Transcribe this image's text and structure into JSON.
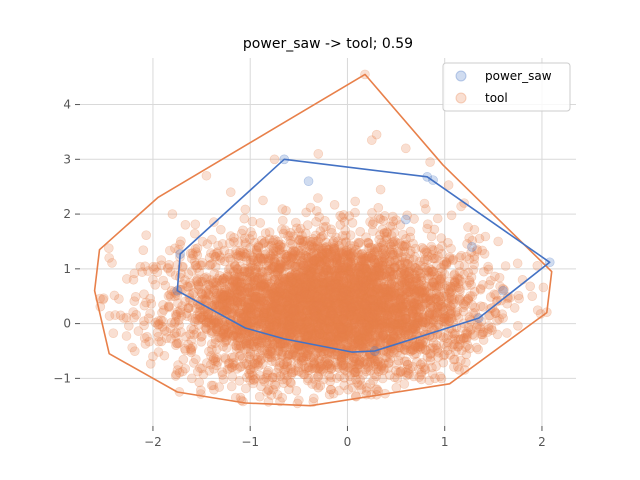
{
  "chart_data": {
    "type": "scatter",
    "title": "power_saw -> tool; 0.59",
    "xlabel": "",
    "ylabel": "",
    "xlim": [
      -2.75,
      2.35
    ],
    "ylim": [
      -1.87,
      4.85
    ],
    "xticks": [
      -2,
      -1,
      0,
      1,
      2
    ],
    "yticks": [
      -1,
      0,
      1,
      2,
      3,
      4
    ],
    "x_tick_labels": [
      "−2",
      "−1",
      "0",
      "1",
      "2"
    ],
    "y_tick_labels": [
      "−1",
      "0",
      "1",
      "2",
      "3",
      "4"
    ],
    "grid": true,
    "legend_position": "top-right",
    "series": [
      {
        "name": "tool",
        "color": "#e8804a",
        "marker": "circle",
        "alpha": 0.25,
        "cloud_center": [
          -0.2,
          0.3
        ],
        "cloud_spread": [
          0.75,
          0.65
        ],
        "approx_points": 5000,
        "hull": [
          [
            -2.55,
            1.35
          ],
          [
            -1.95,
            2.3
          ],
          [
            0.18,
            4.55
          ],
          [
            0.98,
            2.9
          ],
          [
            2.1,
            0.95
          ],
          [
            2.05,
            0.2
          ],
          [
            1.05,
            -1.1
          ],
          [
            -0.38,
            -1.5
          ],
          [
            -1.05,
            -1.45
          ],
          [
            -1.75,
            -1.25
          ],
          [
            -2.45,
            -0.55
          ],
          [
            -2.6,
            0.6
          ]
        ],
        "sample_points": [
          [
            -2.45,
            1.2
          ],
          [
            -2.2,
            0.8
          ],
          [
            -2.3,
            0.1
          ],
          [
            -2.0,
            -0.6
          ],
          [
            -1.6,
            -1.0
          ],
          [
            -1.8,
            2.0
          ],
          [
            -1.2,
            2.4
          ],
          [
            -0.75,
            3.0
          ],
          [
            -0.3,
            3.1
          ],
          [
            0.25,
            3.35
          ],
          [
            0.3,
            3.45
          ],
          [
            0.6,
            3.2
          ],
          [
            0.85,
            2.95
          ],
          [
            1.2,
            2.2
          ],
          [
            1.55,
            1.5
          ],
          [
            1.75,
            1.1
          ],
          [
            1.9,
            0.5
          ],
          [
            1.6,
            0.1
          ],
          [
            1.4,
            -0.3
          ],
          [
            0.9,
            -1.0
          ],
          [
            0.3,
            -1.3
          ],
          [
            -0.5,
            -1.4
          ],
          [
            -1.1,
            -1.35
          ],
          [
            0.18,
            4.55
          ],
          [
            -1.45,
            2.7
          ],
          [
            -2.35,
            0.45
          ],
          [
            1.8,
            0.8
          ]
        ]
      },
      {
        "name": "power_saw",
        "color": "#4472c4",
        "marker": "circle",
        "alpha": 0.25,
        "hull": [
          [
            -0.65,
            3.0
          ],
          [
            0.82,
            2.68
          ],
          [
            2.08,
            1.12
          ],
          [
            1.35,
            0.1
          ],
          [
            0.28,
            -0.5
          ],
          [
            0.05,
            -0.52
          ],
          [
            -0.65,
            -0.28
          ],
          [
            -1.05,
            -0.08
          ],
          [
            -1.75,
            0.6
          ],
          [
            -1.72,
            1.27
          ]
        ],
        "sample_points": [
          [
            -0.65,
            3.0
          ],
          [
            0.82,
            2.68
          ],
          [
            0.88,
            2.62
          ],
          [
            2.08,
            1.12
          ],
          [
            1.35,
            0.1
          ],
          [
            0.28,
            -0.5
          ],
          [
            -1.75,
            0.6
          ],
          [
            -1.72,
            1.27
          ],
          [
            0.6,
            1.9
          ],
          [
            1.28,
            1.4
          ],
          [
            1.6,
            0.6
          ],
          [
            -0.4,
            2.6
          ]
        ]
      }
    ],
    "legend": [
      {
        "label": "power_saw",
        "color": "#4472c4"
      },
      {
        "label": "tool",
        "color": "#e8804a"
      }
    ]
  }
}
